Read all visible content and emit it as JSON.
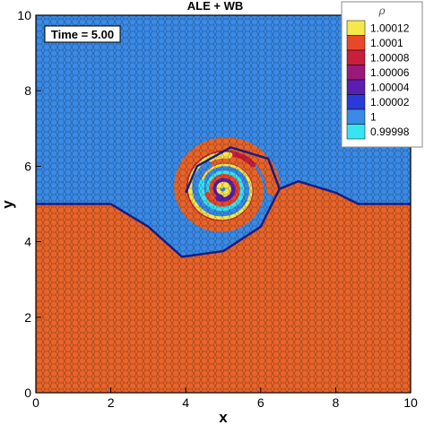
{
  "chart_data": {
    "type": "heatmap",
    "title": "ALE + WB",
    "annotation": "Time = 5.00",
    "xlabel": "x",
    "ylabel": "y",
    "xlim": [
      0,
      10
    ],
    "ylim": [
      0,
      10
    ],
    "xticks": [
      "0",
      "2",
      "4",
      "6",
      "8",
      "10"
    ],
    "yticks": [
      "0",
      "2",
      "4",
      "6",
      "8",
      "10"
    ],
    "legend": {
      "title": "ρ",
      "placement": "top-right",
      "levels": [
        {
          "label": "1.00012",
          "color": "#f7e84a"
        },
        {
          "label": "1.0001",
          "color": "#e8482a"
        },
        {
          "label": "1.00008",
          "color": "#c81f3a"
        },
        {
          "label": "1.00006",
          "color": "#9a1a7a"
        },
        {
          "label": "1.00004",
          "color": "#5a1fb0"
        },
        {
          "label": "1.00002",
          "color": "#2a3ad8"
        },
        {
          "label": "1",
          "color": "#3a8ae6"
        },
        {
          "label": "0.99998",
          "color": "#35e6f2"
        }
      ]
    },
    "regions": [
      {
        "name": "upper-fluid",
        "density": 1.0,
        "color": "#3a8ae6"
      },
      {
        "name": "lower-fluid",
        "density": 1.0001,
        "color": "#e8642a"
      }
    ],
    "interface": {
      "left_y": 5.0,
      "right_y": 5.0,
      "vortex_center": [
        5.0,
        5.4
      ]
    }
  }
}
